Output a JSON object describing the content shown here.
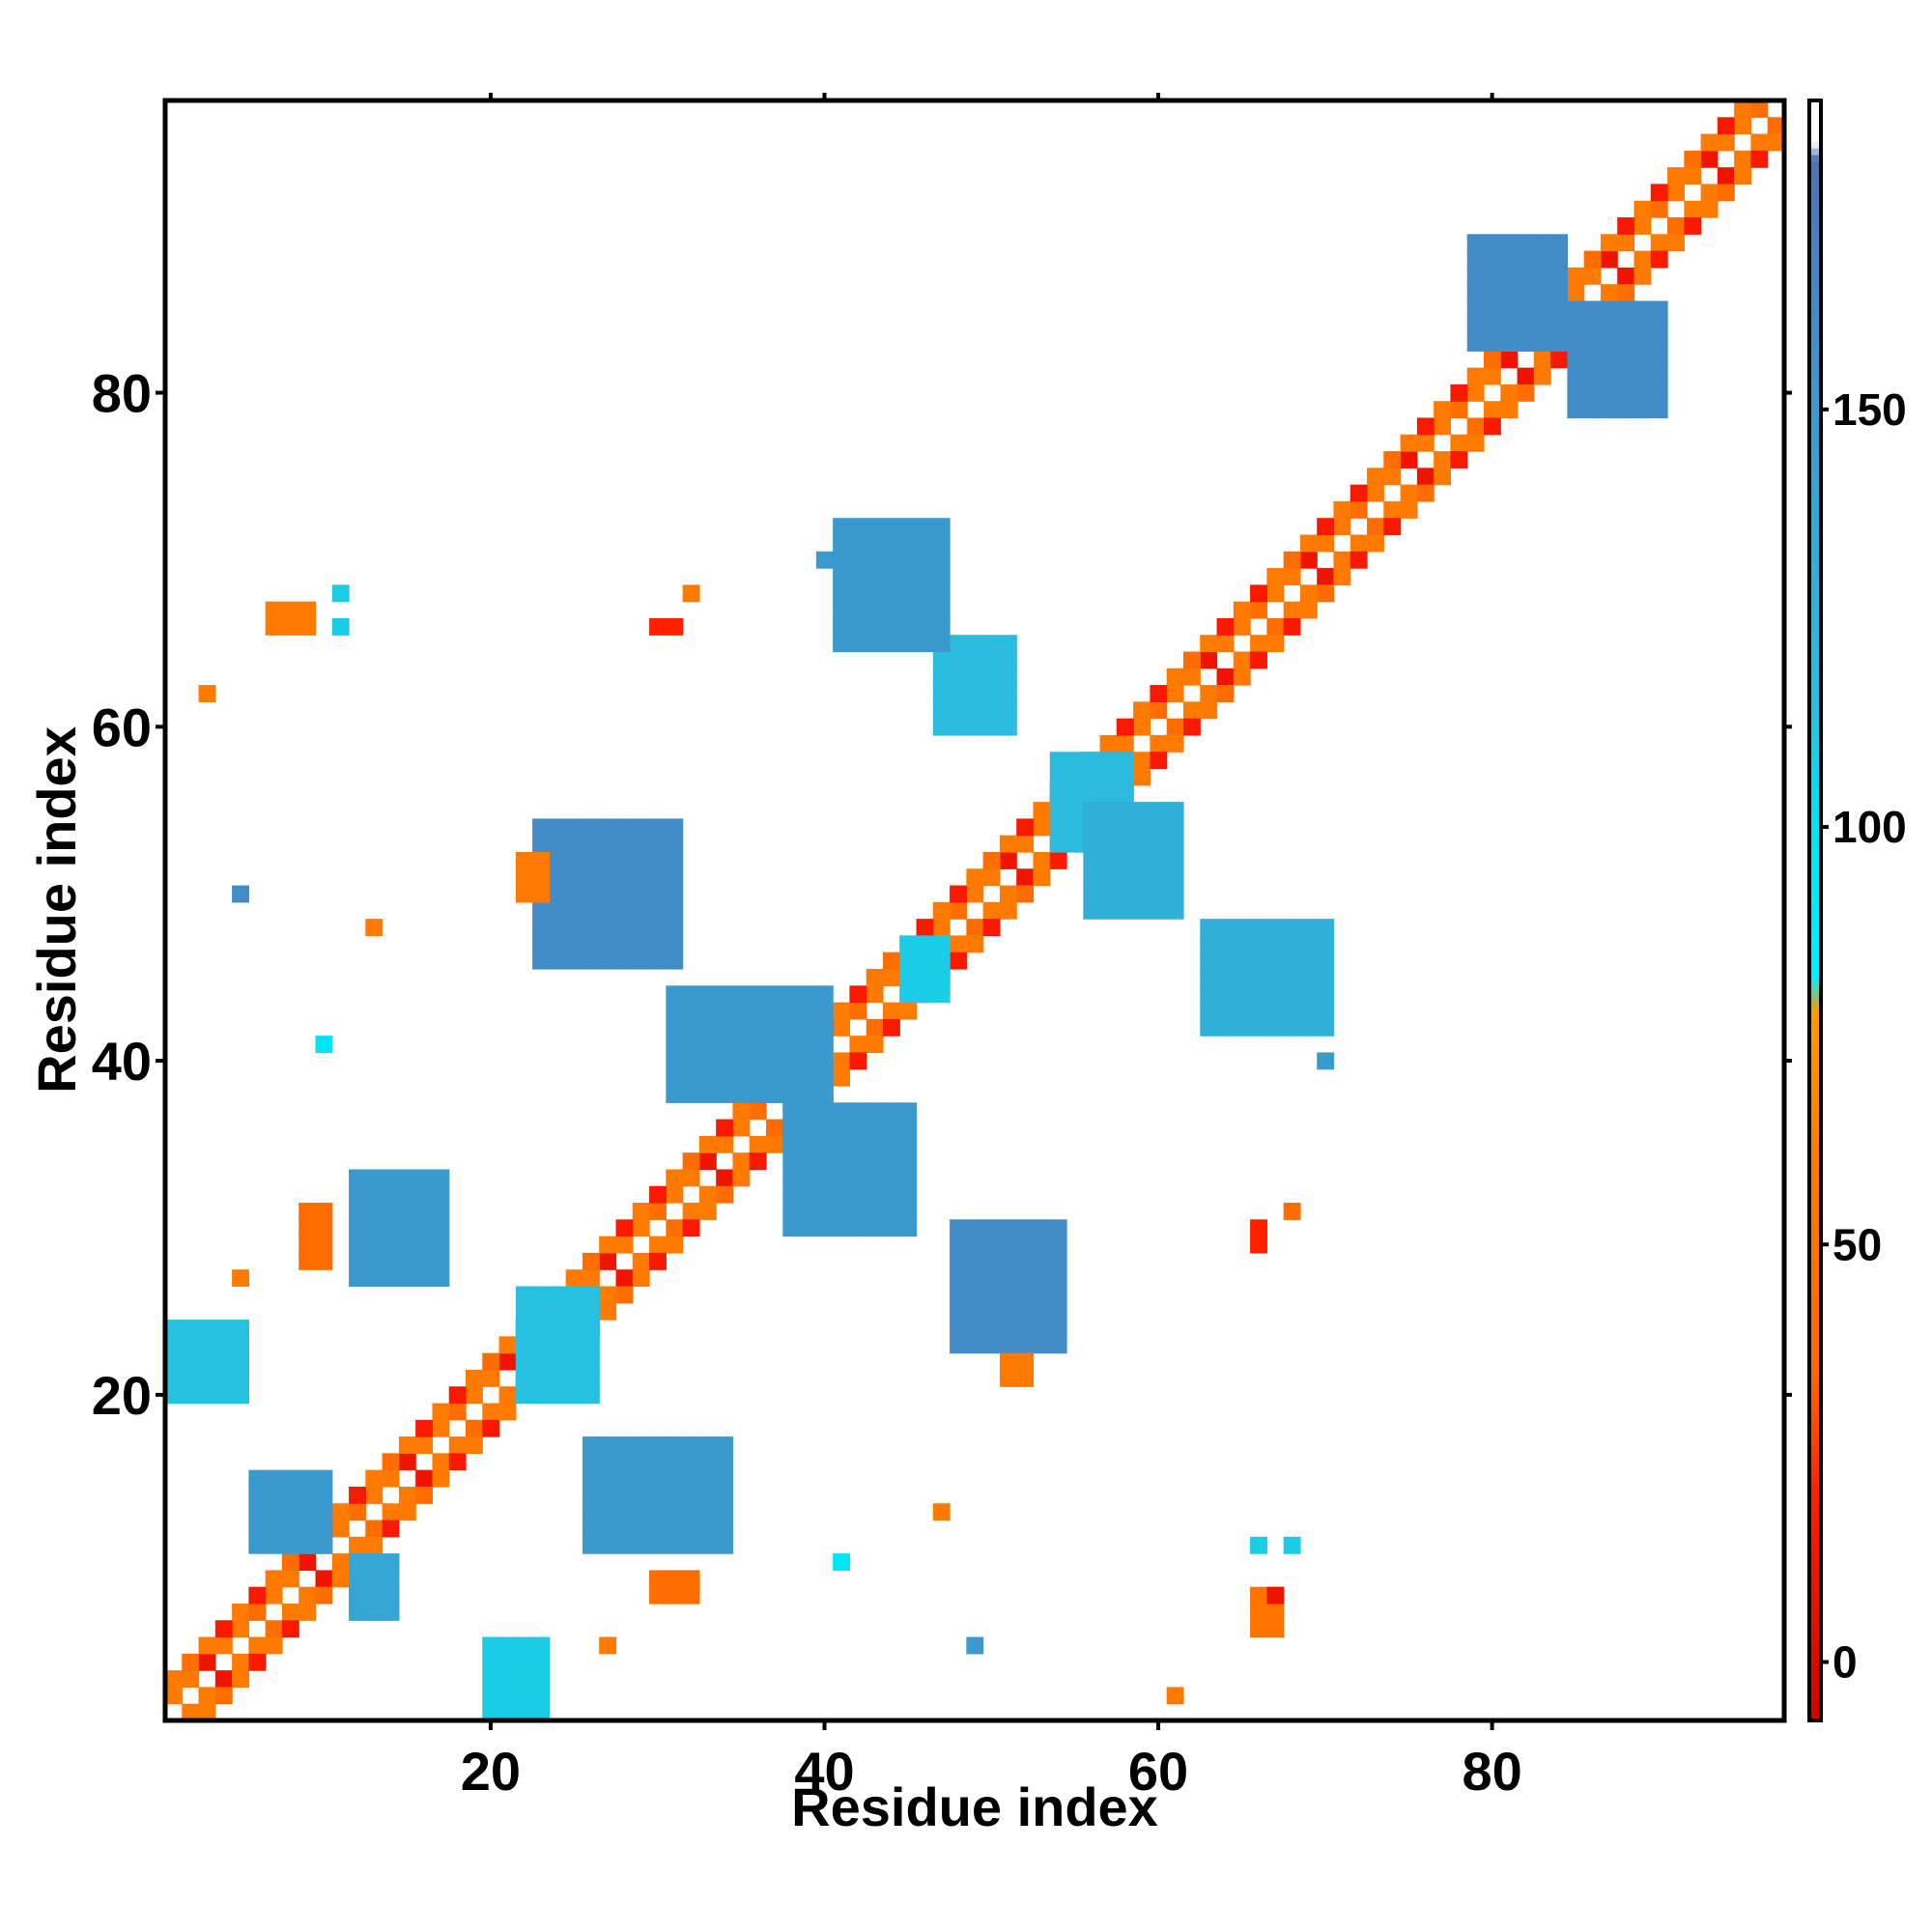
{
  "chart_data": {
    "type": "heatmap",
    "title": "",
    "xlabel": "Residue index",
    "ylabel": "Residue index",
    "n_residues": 97,
    "xlim": [
      0.5,
      97.5
    ],
    "ylim": [
      0.5,
      97.5
    ],
    "x_ticks": [
      20,
      40,
      60,
      80
    ],
    "y_ticks": [
      20,
      40,
      60,
      80
    ],
    "colorbar": {
      "range": [
        -7,
        187
      ],
      "ticks": [
        0,
        50,
        100,
        150
      ],
      "stops": [
        {
          "v": -7,
          "color": "#d40000"
        },
        {
          "v": 20,
          "color": "#ff2000"
        },
        {
          "v": 35,
          "color": "#ff6a00"
        },
        {
          "v": 60,
          "color": "#ff7a00"
        },
        {
          "v": 78,
          "color": "#ff9a00"
        },
        {
          "v": 82,
          "color": "#00f0ff"
        },
        {
          "v": 100,
          "color": "#00e5f5"
        },
        {
          "v": 115,
          "color": "#28c0e0"
        },
        {
          "v": 150,
          "color": "#3a9ad0"
        },
        {
          "v": 170,
          "color": "#4a80c0"
        },
        {
          "v": 180,
          "color": "#5070b0"
        },
        {
          "v": 182,
          "color": "#ffffff"
        },
        {
          "v": 187,
          "color": "#ffffff"
        }
      ]
    },
    "diagonal_bands": [
      {
        "offset": 1,
        "range": [
          1,
          97
        ],
        "values": [
          40,
          60,
          60,
          10,
          60,
          60
        ]
      },
      {
        "offset": 2,
        "range": [
          1,
          97
        ],
        "values": [
          15,
          60,
          40,
          60,
          15,
          60
        ]
      }
    ],
    "patches": [
      {
        "x": [
          20,
          23
        ],
        "y": [
          1,
          5
        ],
        "value": 110
      },
      {
        "x": [
          12,
          14
        ],
        "y": [
          7,
          10
        ],
        "value": 140
      },
      {
        "x": [
          6,
          10
        ],
        "y": [
          11,
          15
        ],
        "value": 150
      },
      {
        "x": [
          1,
          5
        ],
        "y": [
          20,
          24
        ],
        "value": 115
      },
      {
        "x": [
          12,
          17
        ],
        "y": [
          27,
          33
        ],
        "value": 150
      },
      {
        "x": [
          9,
          10
        ],
        "y": [
          28,
          31
        ],
        "value": 40
      },
      {
        "x": [
          22,
          26
        ],
        "y": [
          20,
          26
        ],
        "value": 115
      },
      {
        "x": [
          26,
          34
        ],
        "y": [
          11,
          17
        ],
        "value": 150
      },
      {
        "x": [
          30,
          32
        ],
        "y": [
          8,
          9
        ],
        "value": 40
      },
      {
        "x": [
          31,
          40
        ],
        "y": [
          38,
          44
        ],
        "value": 150
      },
      {
        "x": [
          38,
          45
        ],
        "y": [
          30,
          37
        ],
        "value": 150
      },
      {
        "x": [
          23,
          31
        ],
        "y": [
          46,
          54
        ],
        "value": 160
      },
      {
        "x": [
          22,
          23
        ],
        "y": [
          50,
          52
        ],
        "value": 60
      },
      {
        "x": [
          45,
          47
        ],
        "y": [
          44,
          47
        ],
        "value": 110
      },
      {
        "x": [
          48,
          54
        ],
        "y": [
          23,
          30
        ],
        "value": 160
      },
      {
        "x": [
          51,
          52
        ],
        "y": [
          21,
          22
        ],
        "value": 60
      },
      {
        "x": [
          47,
          51
        ],
        "y": [
          60,
          65
        ],
        "value": 120
      },
      {
        "x": [
          54,
          58
        ],
        "y": [
          53,
          58
        ],
        "value": 120
      },
      {
        "x": [
          56,
          61
        ],
        "y": [
          49,
          55
        ],
        "value": 130
      },
      {
        "x": [
          41,
          47
        ],
        "y": [
          65,
          72
        ],
        "value": 150
      },
      {
        "x": [
          63,
          70
        ],
        "y": [
          42,
          48
        ],
        "value": 130
      },
      {
        "x": [
          79,
          84
        ],
        "y": [
          83,
          89
        ],
        "value": 160
      },
      {
        "x": [
          85,
          90
        ],
        "y": [
          79,
          85
        ],
        "value": 160
      },
      {
        "x": [
          66,
          67
        ],
        "y": [
          6,
          8
        ],
        "value": 50
      },
      {
        "x": [
          7,
          9
        ],
        "y": [
          66,
          67
        ],
        "value": 60
      },
      {
        "x": [
          30,
          31
        ],
        "y": [
          66,
          66
        ],
        "value": 20
      }
    ],
    "points": [
      {
        "x": 3,
        "y": 62,
        "value": 60
      },
      {
        "x": 5,
        "y": 50,
        "value": 160
      },
      {
        "x": 5,
        "y": 27,
        "value": 60
      },
      {
        "x": 11,
        "y": 68,
        "value": 110
      },
      {
        "x": 11,
        "y": 66,
        "value": 110
      },
      {
        "x": 10,
        "y": 41,
        "value": 100
      },
      {
        "x": 13,
        "y": 48,
        "value": 60
      },
      {
        "x": 27,
        "y": 5,
        "value": 60
      },
      {
        "x": 32,
        "y": 68,
        "value": 60
      },
      {
        "x": 40,
        "y": 70,
        "value": 150
      },
      {
        "x": 41,
        "y": 10,
        "value": 95
      },
      {
        "x": 47,
        "y": 13,
        "value": 60
      },
      {
        "x": 49,
        "y": 5,
        "value": 150
      },
      {
        "x": 61,
        "y": 2,
        "value": 60
      },
      {
        "x": 66,
        "y": 11,
        "value": 110
      },
      {
        "x": 68,
        "y": 11,
        "value": 110
      },
      {
        "x": 67,
        "y": 8,
        "value": 10
      },
      {
        "x": 66,
        "y": 29,
        "value": 20
      },
      {
        "x": 66,
        "y": 30,
        "value": 20
      },
      {
        "x": 68,
        "y": 31,
        "value": 40
      },
      {
        "x": 70,
        "y": 40,
        "value": 150
      }
    ]
  }
}
